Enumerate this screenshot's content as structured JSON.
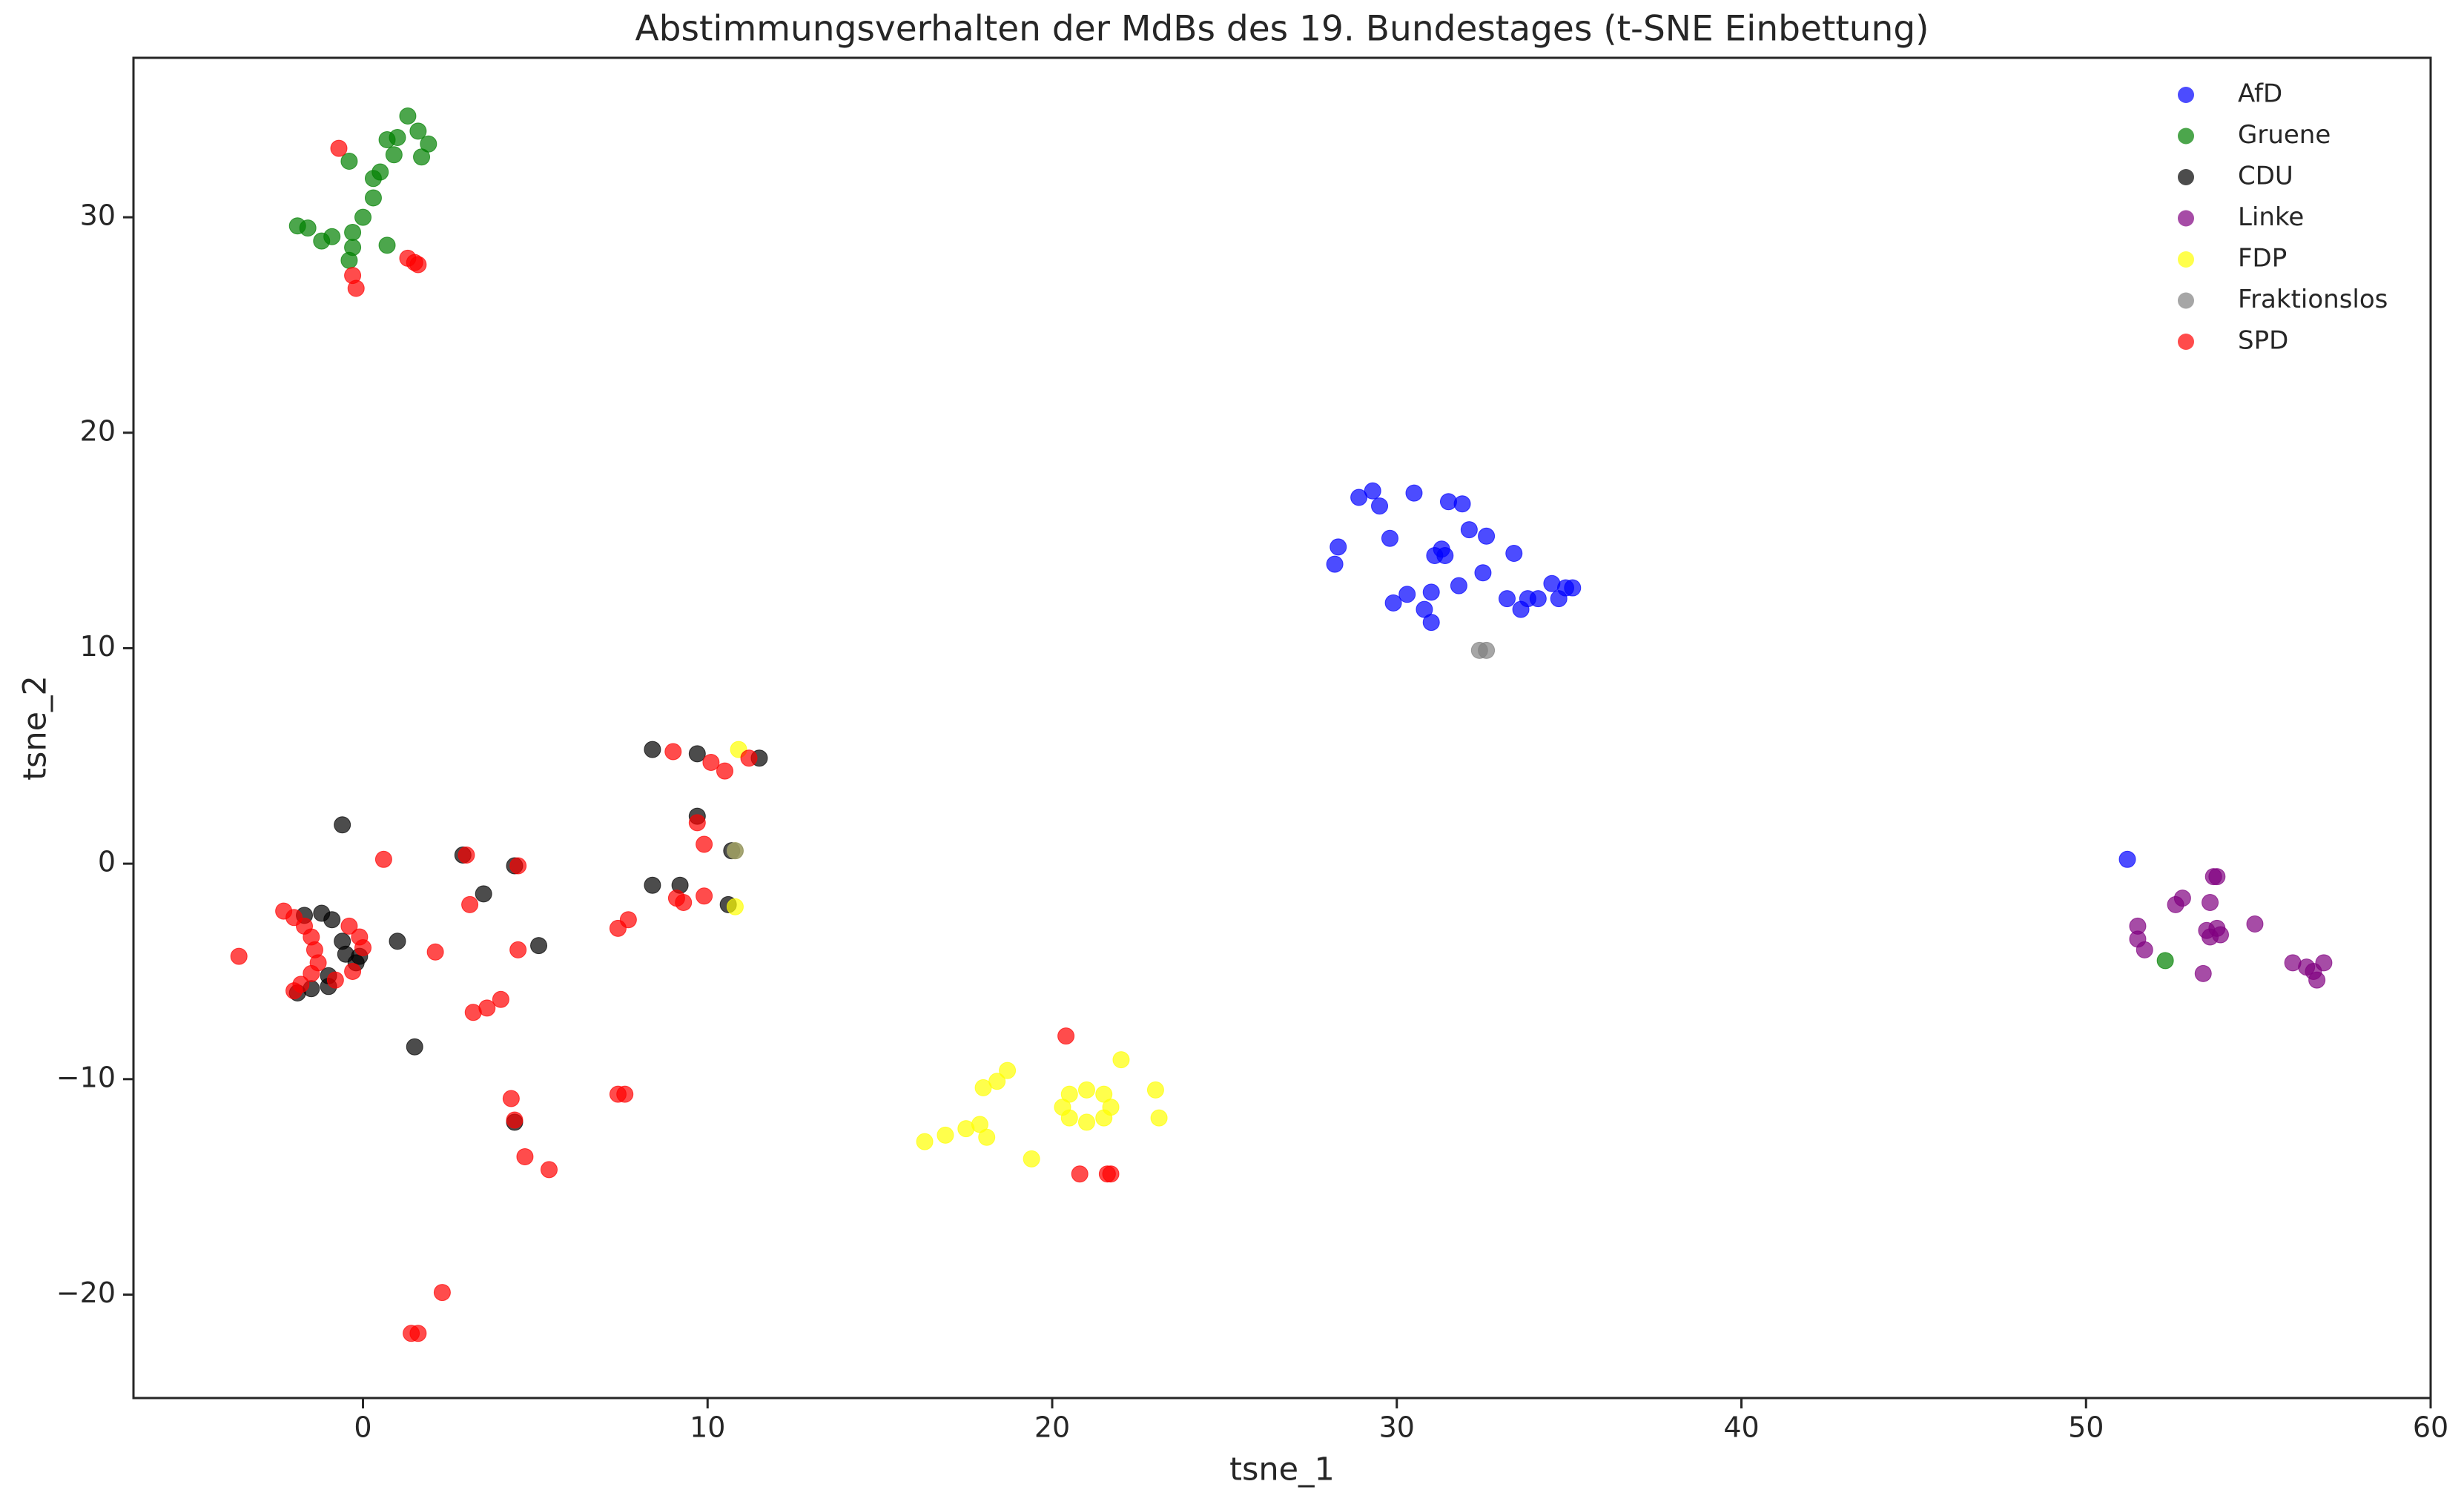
{
  "chart_data": {
    "type": "scatter",
    "title": "Abstimmungsverhalten der MdBs des 19. Bundestages (t-SNE Einbettung)",
    "xlabel": "tsne_1",
    "ylabel": "tsne_2",
    "xlim": [
      -6.66,
      60
    ],
    "ylim": [
      -24.8,
      37.4
    ],
    "xticks": [
      0,
      10,
      20,
      30,
      40,
      50,
      60
    ],
    "yticks": [
      {
        "value": -20,
        "label": "−20"
      },
      {
        "value": -10,
        "label": "−10"
      },
      0,
      10,
      20,
      30
    ],
    "legend": "upper right",
    "series": [
      {
        "name": "AfD",
        "color": "#0000ff",
        "x": [
          28.9,
          29.3,
          29.5,
          30.5,
          31.5,
          31.9,
          28.3,
          28.2,
          29.8,
          31.1,
          31.4,
          31.3,
          32.1,
          32.6,
          33.4,
          29.9,
          30.3,
          31.0,
          30.8,
          31.0,
          31.8,
          32.5,
          33.2,
          33.6,
          33.8,
          34.1,
          34.5,
          34.7,
          34.9,
          35.1,
          51.2
        ],
        "values": [
          17.0,
          17.3,
          16.6,
          17.2,
          16.8,
          16.7,
          14.7,
          13.9,
          15.1,
          14.3,
          14.3,
          14.6,
          15.5,
          15.2,
          14.4,
          12.1,
          12.5,
          12.6,
          11.8,
          11.2,
          12.9,
          13.5,
          12.3,
          11.8,
          12.3,
          12.3,
          13.0,
          12.3,
          12.8,
          12.8,
          0.2
        ]
      },
      {
        "name": "Gruene",
        "color": "#008000",
        "x": [
          -1.9,
          -1.6,
          -1.2,
          -0.9,
          -0.3,
          -0.3,
          -0.4,
          0.0,
          0.3,
          0.3,
          0.5,
          0.7,
          1.0,
          1.3,
          1.6,
          1.9,
          1.7,
          0.9,
          -0.4,
          0.7,
          52.3
        ],
        "values": [
          29.6,
          29.5,
          28.9,
          29.1,
          29.3,
          28.6,
          28.0,
          30.0,
          30.9,
          31.8,
          32.1,
          33.6,
          33.7,
          34.7,
          34.0,
          33.4,
          32.8,
          32.9,
          32.6,
          28.7,
          -4.5
        ]
      },
      {
        "name": "CDU",
        "color": "#000000",
        "x": [
          -0.6,
          1.5,
          1.0,
          3.5,
          4.4,
          4.4,
          5.1,
          8.4,
          9.7,
          11.5,
          9.7,
          8.4,
          9.2,
          10.6,
          10.7,
          2.9,
          -1.2,
          -0.9,
          -0.6,
          -0.5,
          -0.2,
          -0.1,
          -1.0,
          -1.5,
          -1.9,
          -1.0,
          -1.7
        ],
        "values": [
          1.8,
          -8.5,
          -3.6,
          -1.4,
          -0.1,
          -12.0,
          -3.8,
          5.3,
          5.1,
          4.9,
          2.2,
          -1.0,
          -1.0,
          -1.9,
          0.6,
          0.4,
          -2.3,
          -2.6,
          -3.6,
          -4.2,
          -4.6,
          -4.3,
          -5.2,
          -5.8,
          -6.0,
          -5.7,
          -2.4
        ]
      },
      {
        "name": "Linke",
        "color": "#800080",
        "x": [
          53.7,
          53.8,
          52.6,
          52.8,
          53.6,
          51.5,
          51.5,
          51.7,
          53.5,
          53.8,
          53.9,
          53.6,
          54.9,
          53.4,
          56.0,
          56.4,
          56.6,
          56.9,
          56.7
        ],
        "values": [
          -0.6,
          -0.6,
          -1.9,
          -1.6,
          -1.8,
          -2.9,
          -3.5,
          -4.0,
          -3.1,
          -3.0,
          -3.3,
          -3.4,
          -2.8,
          -5.1,
          -4.6,
          -4.8,
          -5.0,
          -4.6,
          -5.4
        ]
      },
      {
        "name": "FDP",
        "color": "#ffff00",
        "x": [
          20.3,
          20.5,
          21.0,
          21.5,
          21.7,
          21.5,
          21.0,
          20.5,
          16.3,
          16.9,
          17.5,
          17.9,
          18.1,
          18.0,
          18.4,
          18.7,
          19.4,
          22.0,
          23.0,
          23.1,
          10.9,
          10.8,
          10.8
        ],
        "values": [
          -11.3,
          -10.7,
          -10.5,
          -10.7,
          -11.3,
          -11.8,
          -12.0,
          -11.8,
          -12.9,
          -12.6,
          -12.3,
          -12.1,
          -12.7,
          -10.4,
          -10.1,
          -9.6,
          -13.7,
          -9.1,
          -10.5,
          -11.8,
          5.3,
          -2.0,
          0.6
        ]
      },
      {
        "name": "Fraktionslos",
        "color": "#808080",
        "x": [
          32.4,
          32.6,
          10.8
        ],
        "values": [
          9.9,
          9.9,
          0.6
        ]
      },
      {
        "name": "SPD",
        "color": "#ff0000",
        "x": [
          -0.7,
          -0.3,
          -0.2,
          1.3,
          1.5,
          1.6,
          -3.6,
          -2.3,
          -2.0,
          -1.7,
          -1.5,
          -1.4,
          -1.3,
          -1.5,
          -1.8,
          -2.0,
          -0.4,
          -0.1,
          0.0,
          -0.3,
          -0.8,
          0.6,
          2.1,
          3.0,
          3.1,
          3.2,
          3.6,
          4.0,
          4.5,
          4.5,
          4.3,
          4.4,
          4.7,
          5.4,
          7.4,
          7.7,
          7.4,
          7.6,
          2.3,
          1.4,
          1.6,
          9.0,
          10.1,
          10.5,
          11.2,
          9.7,
          9.9,
          9.9,
          9.1,
          9.3,
          20.4,
          20.8,
          21.6,
          21.7
        ],
        "values": [
          33.2,
          27.3,
          26.7,
          28.1,
          27.9,
          27.8,
          -4.3,
          -2.2,
          -2.5,
          -2.9,
          -3.4,
          -4.0,
          -4.6,
          -5.1,
          -5.6,
          -5.9,
          -2.9,
          -3.4,
          -3.9,
          -5.0,
          -5.4,
          0.2,
          -4.1,
          0.4,
          -1.9,
          -6.9,
          -6.7,
          -6.3,
          -4.0,
          -0.1,
          -10.9,
          -11.9,
          -13.6,
          -14.2,
          -3.0,
          -2.6,
          -10.7,
          -10.7,
          -19.9,
          -21.8,
          -21.8,
          5.2,
          4.7,
          4.3,
          4.9,
          1.9,
          0.9,
          -1.5,
          -1.6,
          -1.8,
          -8.0,
          -14.4,
          -14.4,
          -14.4
        ]
      }
    ]
  }
}
